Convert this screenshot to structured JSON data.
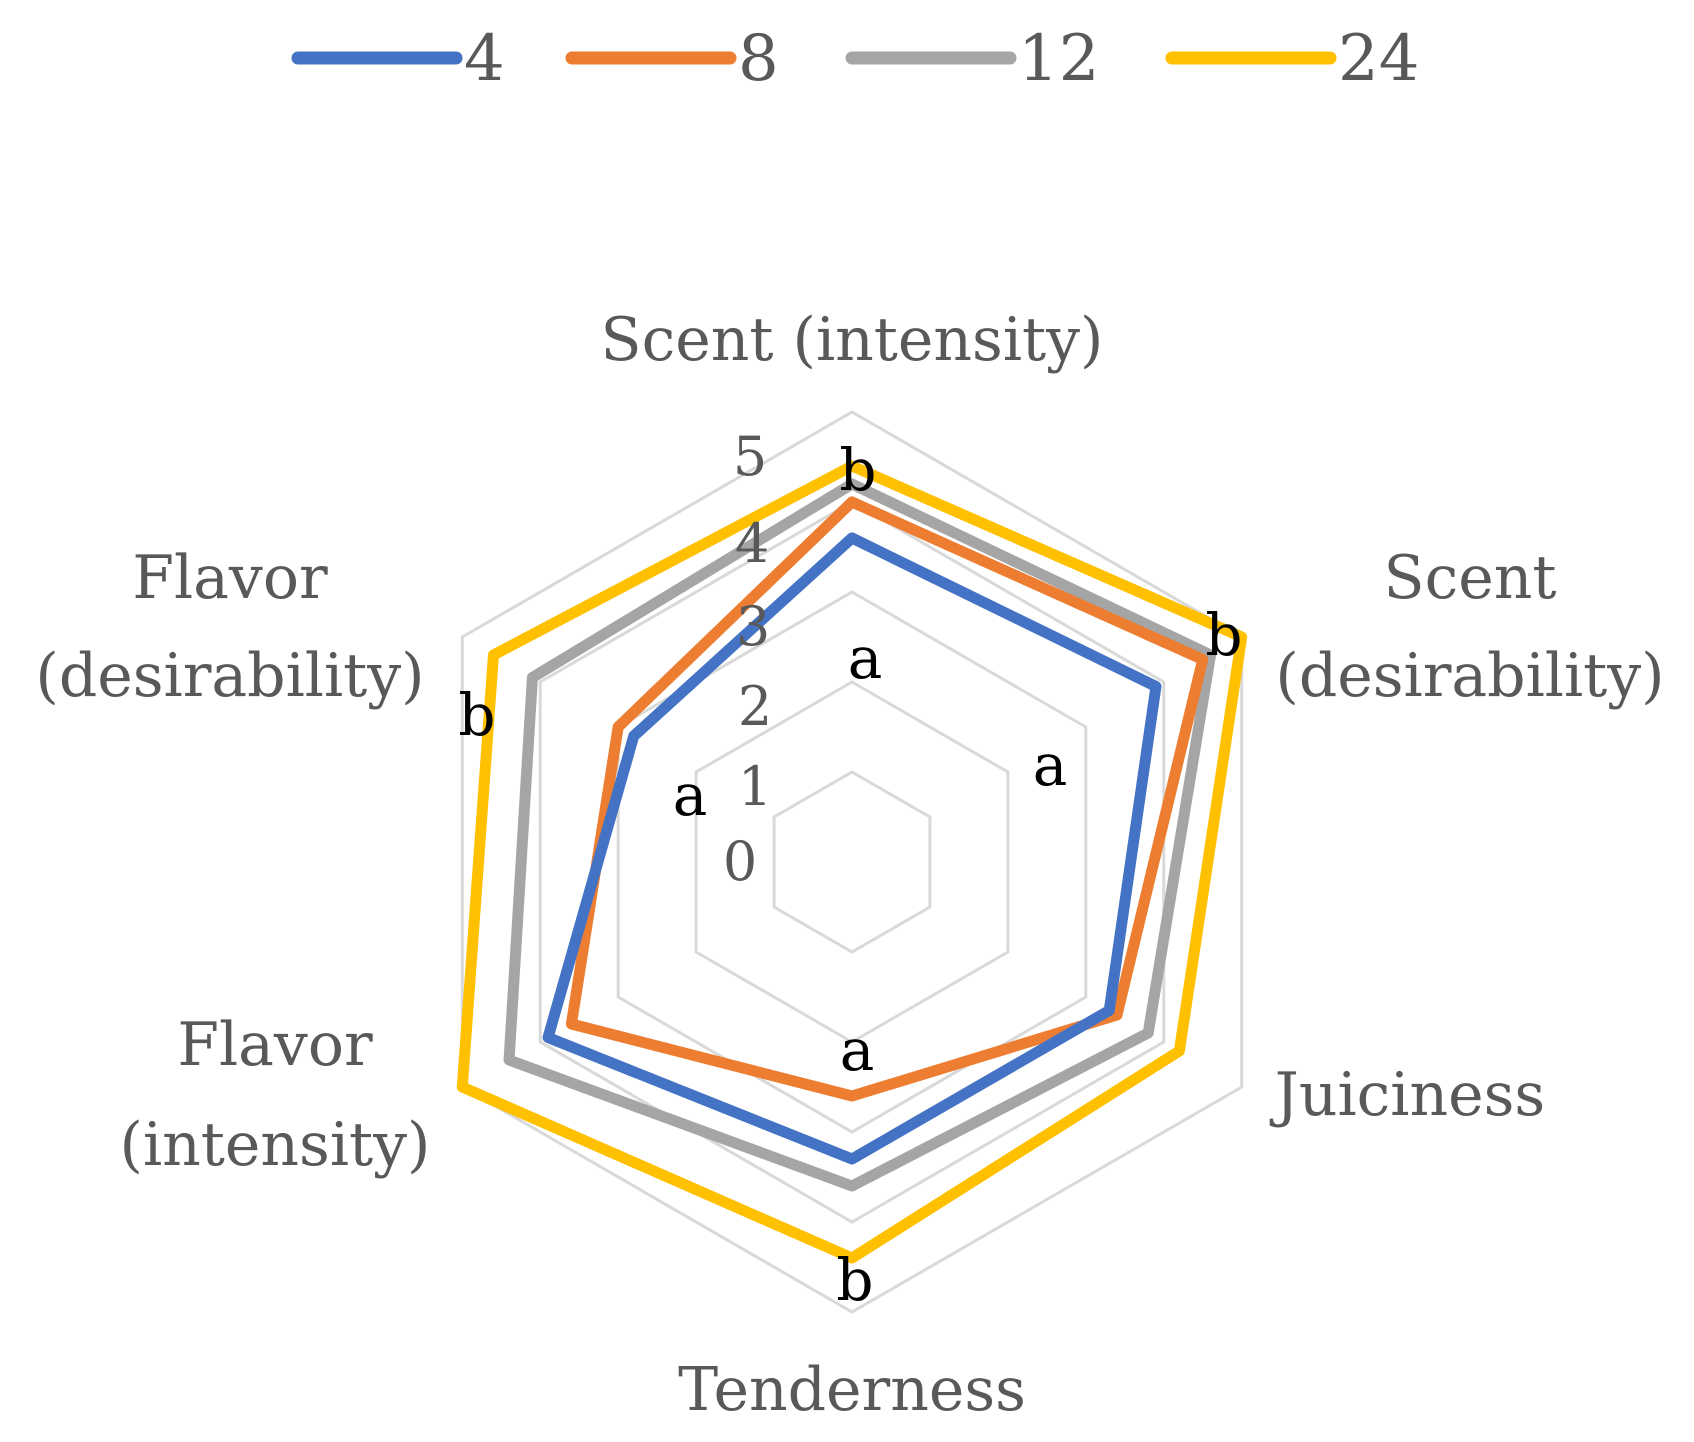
{
  "chart_data": {
    "type": "radar",
    "title": "",
    "axes": [
      [
        "Scent (intensity)"
      ],
      [
        "Scent",
        "(desirability)"
      ],
      [
        "Juiciness"
      ],
      [
        "Tenderness"
      ],
      [
        "Flavor",
        "(intensity)"
      ],
      [
        "Flavor",
        "(desirability)"
      ]
    ],
    "rlim": [
      0,
      5
    ],
    "ticks": [
      "0",
      "1",
      "2",
      "3",
      "4",
      "5"
    ],
    "grid": true,
    "legend_position": "top",
    "series": [
      {
        "name": "4",
        "color": "#4472C4",
        "values": [
          3.6,
          3.9,
          3.3,
          3.3,
          3.9,
          2.8
        ]
      },
      {
        "name": "8",
        "color": "#ED7D31",
        "values": [
          4.0,
          4.5,
          3.4,
          2.6,
          3.6,
          3.0
        ]
      },
      {
        "name": "12",
        "color": "#A5A5A5",
        "values": [
          4.2,
          4.6,
          3.8,
          3.6,
          4.4,
          4.1
        ]
      },
      {
        "name": "24",
        "color": "#FFC000",
        "values": [
          4.4,
          5.0,
          4.2,
          4.4,
          5.0,
          4.6
        ]
      }
    ],
    "significance_labels": [
      "b",
      "b",
      "b",
      "b",
      "a",
      "a",
      "a",
      "a"
    ]
  }
}
